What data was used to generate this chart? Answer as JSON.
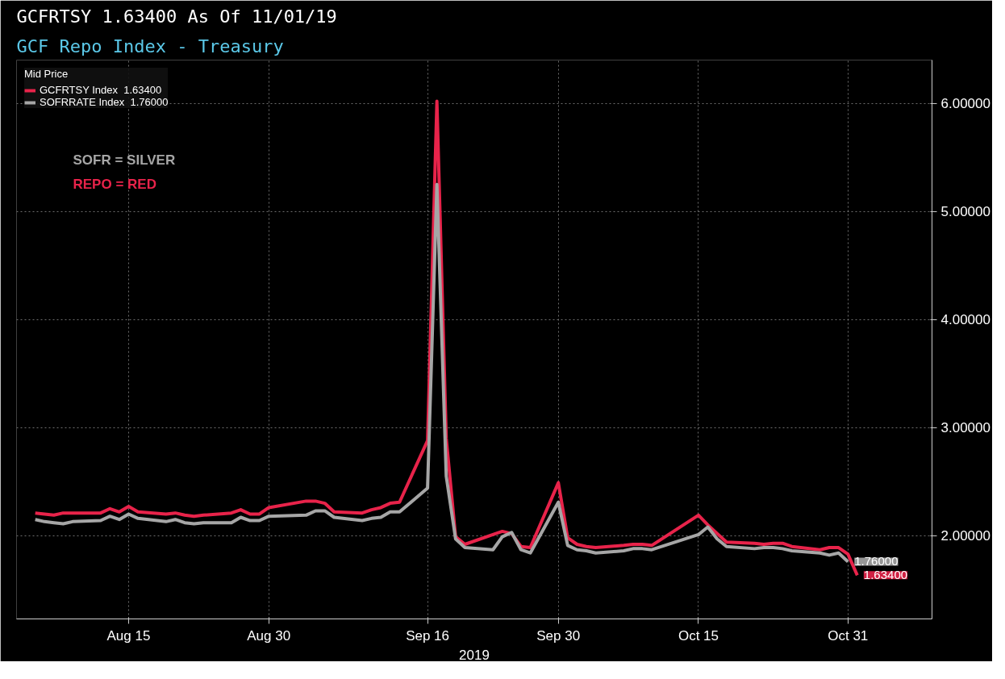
{
  "chart_data": {
    "type": "line",
    "title": "GCFRTSY    1.63400    As Of 11/01/19",
    "subtitle": "GCF Repo Index - Treasury",
    "xlabel": "2019",
    "legend_title": "Mid Price",
    "legend": "top left",
    "grid": true,
    "line_style": "solid",
    "marker": "none",
    "xlim": [
      "2019-08-03",
      "2019-11-09"
    ],
    "xticks": [
      {
        "value": "2019-08-15",
        "label": "Aug 15"
      },
      {
        "value": "2019-08-30",
        "label": "Aug 30"
      },
      {
        "value": "2019-09-16",
        "label": "Sep 16"
      },
      {
        "value": "2019-09-30",
        "label": "Sep 30"
      },
      {
        "value": "2019-10-15",
        "label": "Oct 15"
      },
      {
        "value": "2019-10-31",
        "label": "Oct 31"
      }
    ],
    "ylim": [
      1.23,
      6.4
    ],
    "yticks": [
      {
        "value": 2,
        "label": "2.00000"
      },
      {
        "value": 3,
        "label": "3.00000"
      },
      {
        "value": 4,
        "label": "4.00000"
      },
      {
        "value": 5,
        "label": "5.00000"
      },
      {
        "value": 6,
        "label": "6.00000"
      }
    ],
    "x": [
      "2019-08-05",
      "2019-08-06",
      "2019-08-07",
      "2019-08-08",
      "2019-08-09",
      "2019-08-12",
      "2019-08-13",
      "2019-08-14",
      "2019-08-15",
      "2019-08-16",
      "2019-08-19",
      "2019-08-20",
      "2019-08-21",
      "2019-08-22",
      "2019-08-23",
      "2019-08-26",
      "2019-08-27",
      "2019-08-28",
      "2019-08-29",
      "2019-08-30",
      "2019-09-03",
      "2019-09-04",
      "2019-09-05",
      "2019-09-06",
      "2019-09-09",
      "2019-09-10",
      "2019-09-11",
      "2019-09-12",
      "2019-09-13",
      "2019-09-16",
      "2019-09-17",
      "2019-09-18",
      "2019-09-19",
      "2019-09-20",
      "2019-09-23",
      "2019-09-24",
      "2019-09-25",
      "2019-09-26",
      "2019-09-27",
      "2019-09-30",
      "2019-10-01",
      "2019-10-02",
      "2019-10-03",
      "2019-10-04",
      "2019-10-07",
      "2019-10-08",
      "2019-10-09",
      "2019-10-10",
      "2019-10-15",
      "2019-10-16",
      "2019-10-17",
      "2019-10-18",
      "2019-10-21",
      "2019-10-22",
      "2019-10-23",
      "2019-10-24",
      "2019-10-25",
      "2019-10-28",
      "2019-10-29",
      "2019-10-30",
      "2019-10-31",
      "2019-11-01"
    ],
    "series": [
      {
        "name": "GCFRTSY Index  1.63400",
        "color": "#e8234a",
        "values": [
          2.21,
          2.2,
          2.19,
          2.21,
          2.21,
          2.21,
          2.25,
          2.22,
          2.27,
          2.22,
          2.2,
          2.21,
          2.19,
          2.18,
          2.19,
          2.21,
          2.24,
          2.2,
          2.2,
          2.26,
          2.32,
          2.32,
          2.3,
          2.22,
          2.21,
          2.24,
          2.26,
          2.3,
          2.31,
          2.88,
          6.02,
          2.9,
          1.99,
          1.92,
          2.01,
          2.04,
          2.02,
          1.9,
          1.89,
          2.49,
          1.98,
          1.92,
          1.9,
          1.89,
          1.91,
          1.92,
          1.92,
          1.91,
          2.19,
          2.1,
          2.02,
          1.94,
          1.93,
          1.92,
          1.93,
          1.93,
          1.9,
          1.87,
          1.89,
          1.89,
          1.83,
          1.634
        ]
      },
      {
        "name": "SOFRRATE Index  1.76000",
        "color": "#a6a6a6",
        "values": [
          2.15,
          2.13,
          2.12,
          2.11,
          2.13,
          2.14,
          2.18,
          2.15,
          2.2,
          2.16,
          2.13,
          2.15,
          2.12,
          2.11,
          2.12,
          2.12,
          2.17,
          2.14,
          2.14,
          2.18,
          2.19,
          2.23,
          2.23,
          2.17,
          2.14,
          2.16,
          2.17,
          2.22,
          2.22,
          2.44,
          5.25,
          2.55,
          1.97,
          1.89,
          1.87,
          1.99,
          2.03,
          1.87,
          1.84,
          2.31,
          1.91,
          1.87,
          1.86,
          1.84,
          1.86,
          1.88,
          1.88,
          1.87,
          2.01,
          2.08,
          1.97,
          1.9,
          1.88,
          1.89,
          1.89,
          1.88,
          1.86,
          1.84,
          1.82,
          1.84,
          1.76,
          null
        ]
      }
    ],
    "annotations": [
      "SOFR = SILVER",
      "REPO = RED",
      {
        "text": "1.76000",
        "x": "2019-10-31",
        "y": 1.76
      },
      {
        "text": "1.63400",
        "x": "2019-11-01",
        "y": 1.634
      }
    ]
  }
}
